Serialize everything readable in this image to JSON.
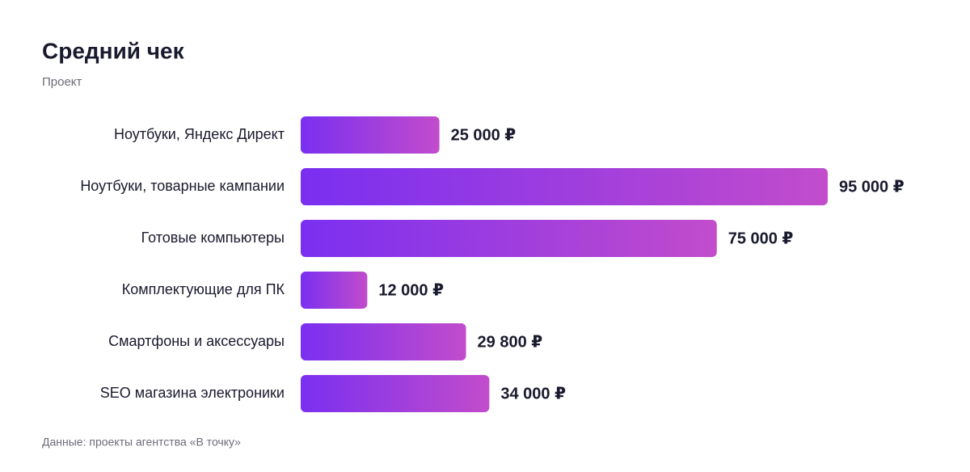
{
  "chart_data": {
    "type": "bar",
    "orientation": "horizontal",
    "title": "Средний чек",
    "subtitle": "Проект",
    "categories": [
      "Ноутбуки, Яндекс Директ",
      "Ноутбуки, товарные кампании",
      "Готовые компьютеры",
      "Комплектующие для ПК",
      "Смартфоны и аксессуары",
      "SEO магазина электроники"
    ],
    "values": [
      25000,
      95000,
      75000,
      12000,
      29800,
      34000
    ],
    "value_labels": [
      "25 000 ₽",
      "95 000 ₽",
      "75 000 ₽",
      "12 000 ₽",
      "29 800 ₽",
      "34 000 ₽"
    ],
    "color": [
      "#7a2ff0",
      "#c24ccc"
    ],
    "note": "Данные: проекты агентства «В точку»"
  }
}
